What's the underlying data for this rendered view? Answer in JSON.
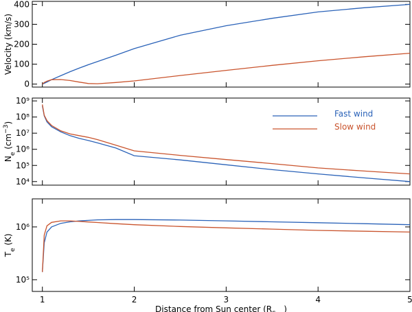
{
  "chart_data": [
    {
      "type": "line",
      "ylabel": [
        {
          "text": "Velocity (km/s)"
        }
      ],
      "x": [
        1.0,
        1.02,
        1.05,
        1.1,
        1.2,
        1.3,
        1.4,
        1.5,
        1.6,
        1.8,
        2,
        2.5,
        3,
        3.5,
        4,
        4.5,
        5
      ],
      "series": [
        {
          "color": "#2a62b8",
          "values": [
            0,
            4,
            10,
            22,
            42,
            62,
            80,
            97,
            113,
            145,
            178,
            245,
            293,
            330,
            362,
            383,
            400
          ]
        },
        {
          "color": "#c9532c",
          "values": [
            0,
            8,
            15,
            22,
            23,
            18,
            10,
            3,
            2,
            8,
            16,
            43,
            69,
            94,
            117,
            137,
            155
          ]
        }
      ],
      "xlim": [
        0.89,
        5.0
      ],
      "xticks": [
        1,
        2,
        3,
        4,
        5
      ],
      "ylim": [
        -15,
        415
      ],
      "yticks": [
        0,
        100,
        200,
        300,
        400
      ]
    },
    {
      "type": "line",
      "ylabel": [
        {
          "text": "N"
        },
        {
          "text": "e",
          "style": "sub"
        },
        {
          "text": " (cm"
        },
        {
          "text": "−3",
          "style": "sup"
        },
        {
          "text": ")"
        }
      ],
      "x": [
        1.0,
        1.02,
        1.05,
        1.1,
        1.2,
        1.3,
        1.4,
        1.5,
        1.6,
        1.8,
        2,
        2.5,
        3,
        3.5,
        4,
        4.5,
        5
      ],
      "series": [
        {
          "name": "Fast wind",
          "color": "#2a62b8",
          "values": [
            500000000,
            120000000,
            50000000,
            25000000,
            12000000,
            7000000,
            4800000,
            3500000,
            2500000,
            1200000,
            400000,
            220000,
            110000,
            55000,
            30000,
            17000,
            10000
          ]
        },
        {
          "name": "Slow wind",
          "color": "#c9532c",
          "values": [
            600000000,
            130000000,
            60000000,
            30000000,
            14000000,
            9000000,
            7000000,
            5500000,
            4000000,
            1800000,
            800000,
            420000,
            230000,
            130000,
            70000,
            45000,
            30000
          ]
        }
      ],
      "log": true,
      "xlim": [
        0.89,
        5.0
      ],
      "xticks": [
        1,
        2,
        3,
        4,
        5
      ],
      "ylim": [
        6000,
        1500000000
      ],
      "yticks": [
        {
          "value": 10000,
          "label": "10⁴"
        },
        {
          "value": 100000,
          "label": "10⁵"
        },
        {
          "value": 1000000,
          "label": "10⁶"
        },
        {
          "value": 10000000,
          "label": "10⁷"
        },
        {
          "value": 100000000,
          "label": "10⁸"
        },
        {
          "value": 1000000000,
          "label": "10⁹"
        }
      ]
    },
    {
      "type": "line",
      "ylabel": [
        {
          "text": "T"
        },
        {
          "text": "e",
          "style": "sub"
        },
        {
          "text": " (K)"
        }
      ],
      "xlabel": [
        {
          "text": "Distance from Sun center (R"
        },
        {
          "text": "Sun",
          "style": "sub"
        },
        {
          "text": ")"
        }
      ],
      "x": [
        1.0,
        1.02,
        1.05,
        1.1,
        1.2,
        1.3,
        1.4,
        1.5,
        1.6,
        1.8,
        2,
        2.5,
        3,
        3.5,
        4,
        4.5,
        5
      ],
      "series": [
        {
          "color": "#2a62b8",
          "values": [
            140000,
            500000,
            800000,
            1000000,
            1170000,
            1250000,
            1300000,
            1330000,
            1360000,
            1380000,
            1380000,
            1350000,
            1300000,
            1250000,
            1200000,
            1150000,
            1100000
          ]
        },
        {
          "color": "#c9532c",
          "values": [
            140000,
            700000,
            1050000,
            1220000,
            1300000,
            1300000,
            1270000,
            1240000,
            1210000,
            1150000,
            1100000,
            1020000,
            960000,
            910000,
            860000,
            830000,
            800000
          ]
        }
      ],
      "log": true,
      "xlim": [
        0.89,
        5.0
      ],
      "xticks": [
        1,
        2,
        3,
        4,
        5
      ],
      "ylim": [
        60000,
        3400000
      ],
      "yticks": [
        {
          "value": 100000,
          "label": "10⁵"
        },
        {
          "value": 1000000,
          "label": "10⁶"
        }
      ]
    }
  ]
}
